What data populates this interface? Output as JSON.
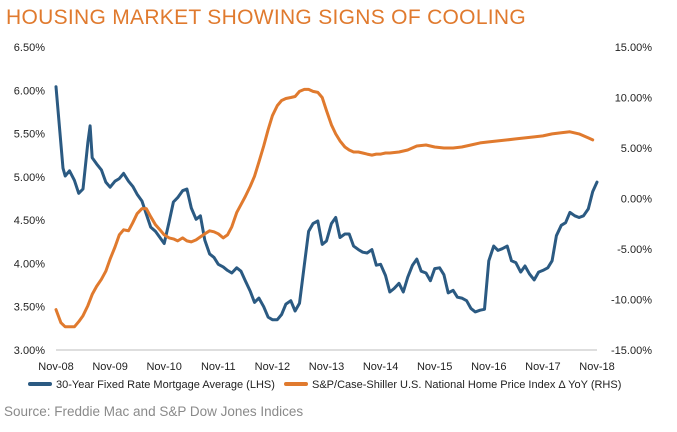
{
  "title": "HOUSING MARKET SHOWING SIGNS OF COOLING",
  "source": "Source:  Freddie Mac and S&P Dow Jones Indices",
  "chart_data": {
    "type": "line",
    "x_ticks": [
      "Nov-08",
      "Nov-09",
      "Nov-10",
      "Nov-11",
      "Nov-12",
      "Nov-13",
      "Nov-14",
      "Nov-15",
      "Nov-16",
      "Nov-17",
      "Nov-18"
    ],
    "y_left": {
      "range": [
        3.0,
        6.5
      ],
      "ticks": [
        "3.00%",
        "3.50%",
        "4.00%",
        "4.50%",
        "5.00%",
        "5.50%",
        "6.00%",
        "6.50%"
      ]
    },
    "y_right": {
      "range": [
        -15,
        15
      ],
      "ticks": [
        "-15.00%",
        "-10.00%",
        "-5.00%",
        "0.00%",
        "5.00%",
        "10.00%",
        "15.00%"
      ]
    },
    "legend_position": "bottom",
    "series": [
      {
        "name": "30-Year Fixed Rate Mortgage Average (LHS)",
        "axis": "left",
        "color": "#2b5a82",
        "x": [
          2008.83,
          2008.9,
          2008.96,
          2009.0,
          2009.08,
          2009.17,
          2009.25,
          2009.33,
          2009.42,
          2009.46,
          2009.5,
          2009.58,
          2009.67,
          2009.75,
          2009.83,
          2009.92,
          2010.0,
          2010.08,
          2010.17,
          2010.25,
          2010.33,
          2010.42,
          2010.5,
          2010.58,
          2010.67,
          2010.75,
          2010.83,
          2010.92,
          2011.0,
          2011.08,
          2011.17,
          2011.25,
          2011.33,
          2011.42,
          2011.5,
          2011.58,
          2011.67,
          2011.75,
          2011.83,
          2011.92,
          2012.0,
          2012.08,
          2012.17,
          2012.25,
          2012.33,
          2012.42,
          2012.5,
          2012.58,
          2012.67,
          2012.75,
          2012.83,
          2012.92,
          2013.0,
          2013.08,
          2013.17,
          2013.25,
          2013.33,
          2013.42,
          2013.5,
          2013.58,
          2013.67,
          2013.75,
          2013.83,
          2013.92,
          2014.0,
          2014.08,
          2014.17,
          2014.25,
          2014.33,
          2014.42,
          2014.5,
          2014.58,
          2014.67,
          2014.75,
          2014.83,
          2014.92,
          2015.0,
          2015.08,
          2015.17,
          2015.25,
          2015.33,
          2015.42,
          2015.5,
          2015.58,
          2015.67,
          2015.75,
          2015.83,
          2015.92,
          2016.0,
          2016.08,
          2016.17,
          2016.25,
          2016.33,
          2016.42,
          2016.5,
          2016.58,
          2016.67,
          2016.75,
          2016.83,
          2016.92,
          2017.0,
          2017.08,
          2017.17,
          2017.25,
          2017.33,
          2017.42,
          2017.5,
          2017.58,
          2017.67,
          2017.75,
          2017.83,
          2017.92,
          2018.0,
          2018.08,
          2018.17,
          2018.25,
          2018.33,
          2018.42,
          2018.5,
          2018.58,
          2018.67,
          2018.75,
          2018.83
        ],
        "values": [
          6.04,
          5.53,
          5.1,
          5.01,
          5.07,
          4.96,
          4.81,
          4.86,
          5.4,
          5.59,
          5.22,
          5.15,
          5.08,
          4.94,
          4.88,
          4.95,
          4.98,
          5.04,
          4.95,
          4.89,
          4.8,
          4.72,
          4.57,
          4.42,
          4.37,
          4.3,
          4.23,
          4.48,
          4.71,
          4.76,
          4.84,
          4.86,
          4.64,
          4.51,
          4.55,
          4.27,
          4.11,
          4.07,
          3.99,
          3.96,
          3.92,
          3.89,
          3.95,
          3.91,
          3.8,
          3.68,
          3.55,
          3.6,
          3.5,
          3.38,
          3.35,
          3.35,
          3.41,
          3.53,
          3.57,
          3.45,
          3.54,
          3.98,
          4.37,
          4.46,
          4.49,
          4.22,
          4.26,
          4.46,
          4.53,
          4.3,
          4.34,
          4.34,
          4.2,
          4.16,
          4.13,
          4.12,
          4.16,
          3.98,
          3.99,
          3.86,
          3.67,
          3.71,
          3.77,
          3.67,
          3.84,
          3.98,
          4.05,
          3.91,
          3.89,
          3.8,
          3.94,
          3.95,
          3.87,
          3.66,
          3.69,
          3.61,
          3.6,
          3.57,
          3.48,
          3.44,
          3.46,
          3.47,
          4.03,
          4.2,
          4.15,
          4.17,
          4.2,
          4.03,
          4.01,
          3.9,
          3.97,
          3.88,
          3.81,
          3.9,
          3.92,
          3.95,
          4.03,
          4.32,
          4.44,
          4.47,
          4.59,
          4.55,
          4.53,
          4.55,
          4.63,
          4.83,
          4.94
        ]
      },
      {
        "name": "S&P/Case-Shiller U.S. National Home Price Index Δ YoY (RHS)",
        "axis": "right",
        "color": "#e07a2e",
        "x": [
          2008.83,
          2008.92,
          2009.0,
          2009.08,
          2009.17,
          2009.25,
          2009.33,
          2009.42,
          2009.5,
          2009.58,
          2009.67,
          2009.75,
          2009.83,
          2009.92,
          2010.0,
          2010.08,
          2010.17,
          2010.25,
          2010.33,
          2010.42,
          2010.5,
          2010.58,
          2010.67,
          2010.75,
          2010.83,
          2010.92,
          2011.0,
          2011.08,
          2011.17,
          2011.25,
          2011.33,
          2011.42,
          2011.5,
          2011.58,
          2011.67,
          2011.75,
          2011.83,
          2011.92,
          2012.0,
          2012.08,
          2012.17,
          2012.25,
          2012.33,
          2012.42,
          2012.5,
          2012.58,
          2012.67,
          2012.75,
          2012.83,
          2012.92,
          2013.0,
          2013.08,
          2013.17,
          2013.25,
          2013.33,
          2013.42,
          2013.5,
          2013.58,
          2013.67,
          2013.75,
          2013.83,
          2013.92,
          2014.0,
          2014.08,
          2014.17,
          2014.25,
          2014.33,
          2014.42,
          2014.5,
          2014.58,
          2014.67,
          2014.75,
          2014.83,
          2014.92,
          2015.0,
          2015.17,
          2015.33,
          2015.5,
          2015.67,
          2015.83,
          2016.0,
          2016.17,
          2016.33,
          2016.5,
          2016.67,
          2016.83,
          2017.0,
          2017.17,
          2017.33,
          2017.5,
          2017.67,
          2017.83,
          2018.0,
          2018.17,
          2018.33,
          2018.5,
          2018.67,
          2018.75
        ],
        "values": [
          -11.0,
          -12.3,
          -12.7,
          -12.7,
          -12.7,
          -12.2,
          -11.6,
          -10.6,
          -9.5,
          -8.7,
          -8.0,
          -7.2,
          -6.0,
          -4.8,
          -3.6,
          -3.1,
          -3.2,
          -2.4,
          -1.5,
          -1.0,
          -1.0,
          -1.8,
          -2.6,
          -3.1,
          -3.6,
          -3.9,
          -4.0,
          -4.2,
          -3.9,
          -4.2,
          -4.3,
          -4.1,
          -3.8,
          -3.5,
          -3.2,
          -3.3,
          -3.5,
          -3.9,
          -3.6,
          -2.8,
          -1.4,
          -0.6,
          0.2,
          1.2,
          2.2,
          3.6,
          5.2,
          6.8,
          8.2,
          9.2,
          9.7,
          9.9,
          10.0,
          10.1,
          10.6,
          10.8,
          10.8,
          10.6,
          10.5,
          10.0,
          8.7,
          7.3,
          6.4,
          5.7,
          5.1,
          4.8,
          4.6,
          4.6,
          4.5,
          4.4,
          4.3,
          4.4,
          4.4,
          4.5,
          4.5,
          4.6,
          4.8,
          5.2,
          5.3,
          5.1,
          5.0,
          5.0,
          5.1,
          5.3,
          5.5,
          5.6,
          5.7,
          5.8,
          5.9,
          6.0,
          6.1,
          6.2,
          6.4,
          6.5,
          6.6,
          6.4,
          6.0,
          5.8
        ]
      }
    ]
  }
}
